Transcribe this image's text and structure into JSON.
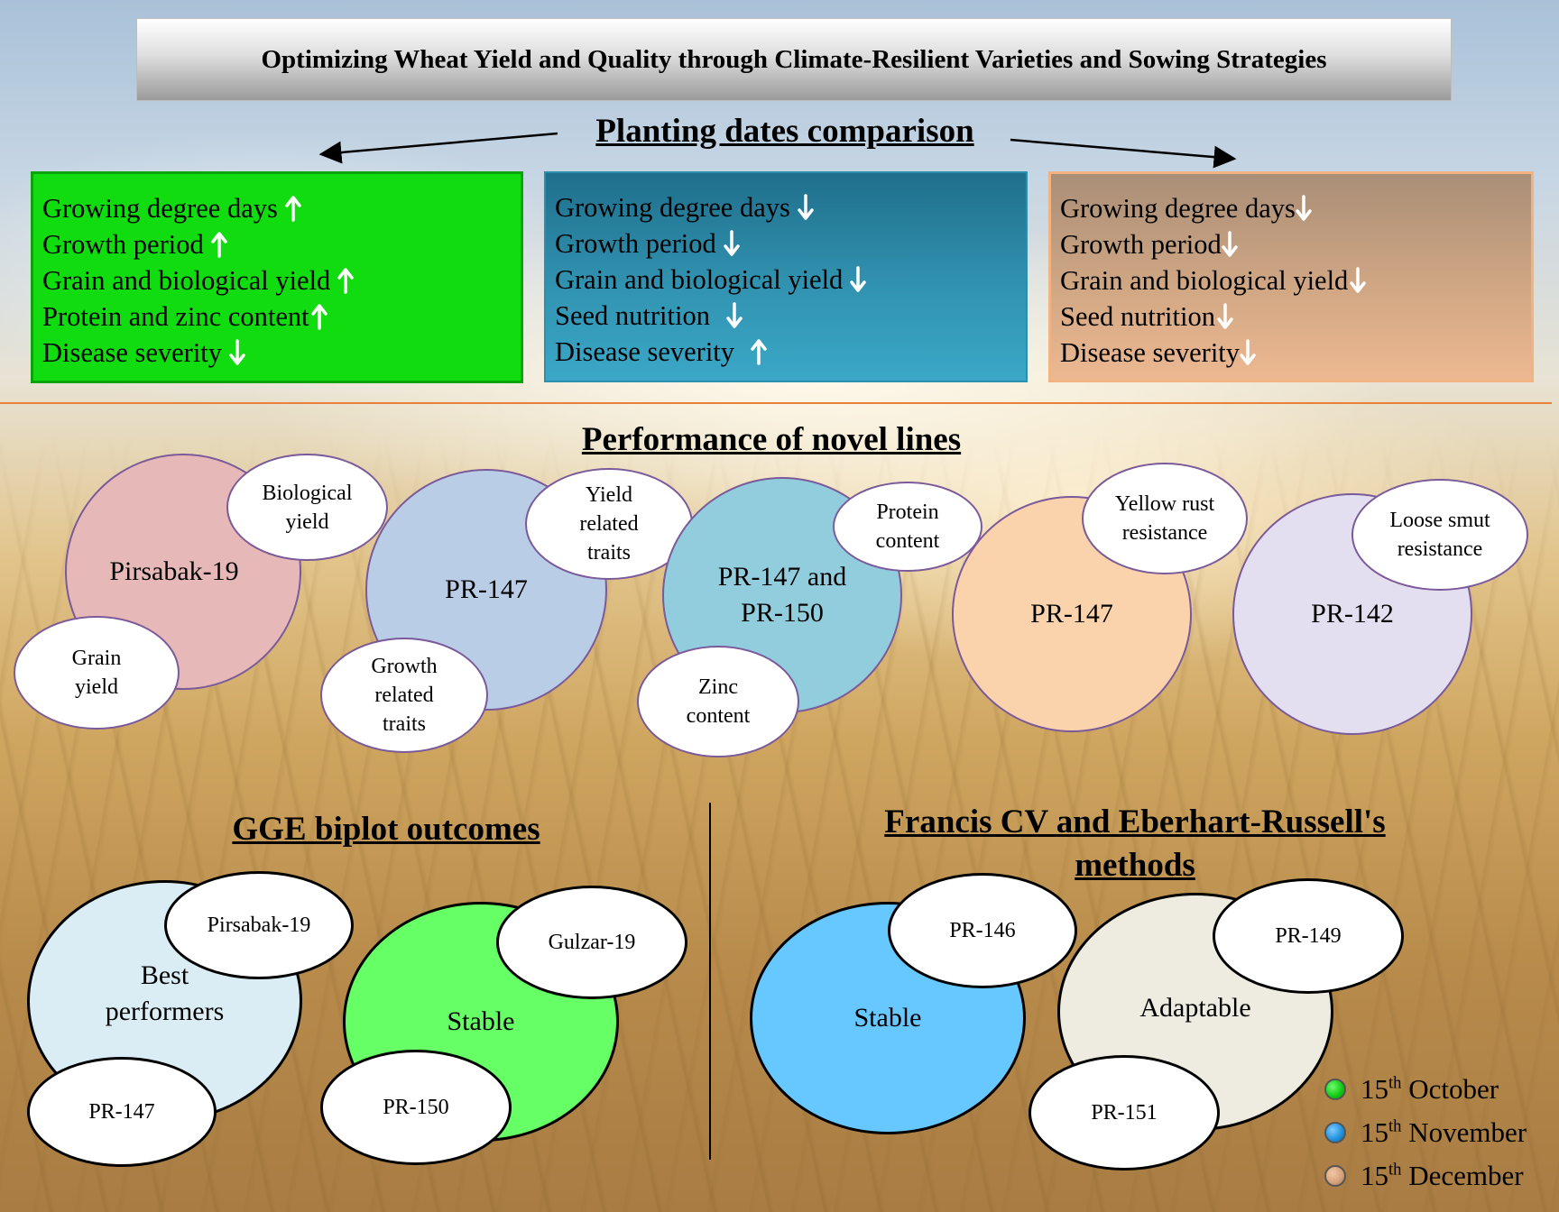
{
  "title": "Optimizing Wheat Yield and Quality through Climate-Resilient Varieties and Sowing Strategies",
  "planting": {
    "heading": "Planting dates comparison",
    "boxes": [
      {
        "color": "#10dc10",
        "items": [
          {
            "text": "Growing degree days",
            "trend": "up"
          },
          {
            "text": "Growth period",
            "trend": "up"
          },
          {
            "text": "Grain and biological yield",
            "trend": "up"
          },
          {
            "text": "Protein and zinc content",
            "trend": "up"
          },
          {
            "text": "Disease severity",
            "trend": "down"
          }
        ]
      },
      {
        "color": "#3193b1",
        "items": [
          {
            "text": "Growing degree days",
            "trend": "down"
          },
          {
            "text": "Growth period",
            "trend": "down"
          },
          {
            "text": "Grain and biological yield",
            "trend": "down"
          },
          {
            "text": "Seed nutrition",
            "trend": "down"
          },
          {
            "text": "Disease severity",
            "trend": "up"
          }
        ]
      },
      {
        "color": "#d4a985",
        "items": [
          {
            "text": "Growing degree days",
            "trend": "down"
          },
          {
            "text": "Growth period",
            "trend": "down"
          },
          {
            "text": "Grain and biological yield",
            "trend": "down"
          },
          {
            "text": "Seed nutrition",
            "trend": "down"
          },
          {
            "text": "Disease severity",
            "trend": "down"
          }
        ]
      }
    ]
  },
  "novel_lines": {
    "heading": "Performance of novel lines",
    "groups": [
      {
        "main": "Pirsabak-19",
        "main_color": "#e7b8b8",
        "satellites": [
          "Biological yield",
          "Grain yield"
        ]
      },
      {
        "main": "PR-147",
        "main_color": "#b9cde6",
        "satellites": [
          "Yield related traits",
          "Growth related traits"
        ]
      },
      {
        "main": "PR-147 and PR-150",
        "main_color": "#92cddd",
        "satellites": [
          "Protein content",
          "Zinc content"
        ]
      },
      {
        "main": "PR-147",
        "main_color": "#fad3ad",
        "satellites": [
          "Yellow rust resistance"
        ]
      },
      {
        "main": "PR-142",
        "main_color": "#e4dff0",
        "satellites": [
          "Loose smut resistance"
        ]
      }
    ]
  },
  "gge": {
    "heading": "GGE biplot outcomes",
    "groups": [
      {
        "main": "Best performers",
        "main_color": "#daedf4",
        "satellites": [
          "Pirsabak-19",
          "PR-147"
        ]
      },
      {
        "main": "Stable",
        "main_color": "#66ff66",
        "satellites": [
          "Gulzar-19",
          "PR-150"
        ]
      }
    ]
  },
  "francis": {
    "heading_line1": "Francis CV and Eberhart-Russell's",
    "heading_line2": "methods",
    "groups": [
      {
        "main": "Stable",
        "main_color": "#66c8ff",
        "satellites": [
          "PR-146"
        ]
      },
      {
        "main": "Adaptable",
        "main_color": "#eeece1",
        "satellites": [
          "PR-149",
          "PR-151"
        ]
      }
    ]
  },
  "legend": [
    {
      "day": "15",
      "suffix": "th",
      "month": "October",
      "color": "#10c810"
    },
    {
      "day": "15",
      "suffix": "th",
      "month": "November",
      "color": "#1e90d8"
    },
    {
      "day": "15",
      "suffix": "th",
      "month": "December",
      "color": "#d4a077"
    }
  ]
}
